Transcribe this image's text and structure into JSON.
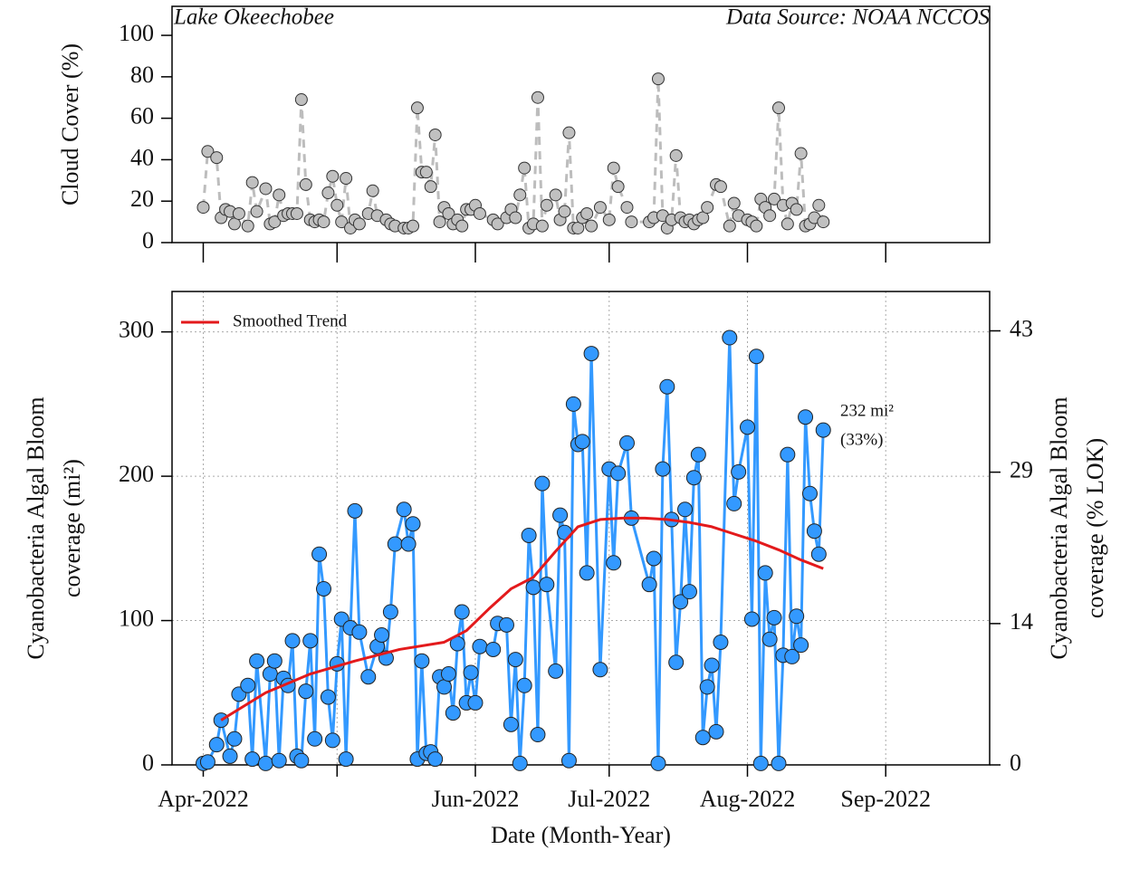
{
  "chart_data": [
    {
      "type": "scatter",
      "annotations": [
        "Lake Okeechobee",
        "Data Source: NOAA NCCOS"
      ],
      "ylabel": "Cloud Cover (%)",
      "color": "#c0c0c0",
      "line_color": "#bdbdbd",
      "x": [
        91,
        92,
        94,
        95,
        96,
        97,
        98,
        99,
        101,
        102,
        103,
        105,
        106,
        107,
        108,
        109,
        110,
        111,
        112,
        113,
        114,
        115,
        116,
        117,
        118,
        119,
        120,
        121,
        122,
        123,
        124,
        125,
        126,
        128,
        129,
        130,
        132,
        133,
        134,
        136,
        137,
        138,
        139,
        140,
        141,
        142,
        143,
        144,
        145,
        146,
        147,
        148,
        149,
        150,
        151,
        152,
        153,
        156,
        157,
        159,
        160,
        161,
        162,
        163,
        164,
        165,
        166,
        167,
        168,
        170,
        171,
        172,
        173,
        174,
        175,
        176,
        177,
        178,
        180,
        182,
        183,
        184,
        186,
        187,
        191,
        192,
        193,
        194,
        195,
        196,
        197,
        198,
        199,
        200,
        201,
        202,
        203,
        204,
        206,
        207,
        209,
        210,
        211,
        213,
        214,
        215,
        216,
        217,
        218,
        219,
        220,
        221,
        222,
        223,
        224,
        225,
        226,
        227,
        228,
        229,
        230
      ],
      "values": [
        17,
        44,
        41,
        12,
        16,
        15,
        9,
        14,
        8,
        29,
        15,
        26,
        9,
        10,
        23,
        13,
        14,
        14,
        14,
        69,
        28,
        11,
        10,
        11,
        10,
        24,
        32,
        18,
        10,
        31,
        7,
        11,
        9,
        14,
        25,
        13,
        11,
        9,
        8,
        7,
        7,
        8,
        65,
        34,
        34,
        27,
        52,
        10,
        17,
        14,
        9,
        11,
        8,
        16,
        16,
        18,
        14,
        11,
        9,
        12,
        16,
        12,
        23,
        36,
        7,
        9,
        70,
        8,
        18,
        23,
        11,
        15,
        53,
        7,
        7,
        12,
        14,
        8,
        17,
        11,
        36,
        27,
        17,
        10,
        10,
        12,
        79,
        13,
        7,
        11,
        42,
        12,
        10,
        11,
        9,
        11,
        12,
        17,
        28,
        27,
        8,
        19,
        13,
        11,
        10,
        8,
        21,
        17,
        13,
        21,
        65,
        18,
        9,
        19,
        16,
        43,
        8,
        9,
        12,
        18,
        10
      ],
      "xlim": [
        84,
        267.3
      ],
      "xticks": [
        {
          "value": 91,
          "label": null
        },
        {
          "value": 121,
          "label": null
        },
        {
          "value": 152,
          "label": null
        },
        {
          "value": 182,
          "label": null
        },
        {
          "value": 213,
          "label": null
        },
        {
          "value": 244,
          "label": null
        }
      ],
      "ylim": [
        0,
        114
      ],
      "yticks": [
        0,
        20,
        40,
        60,
        80,
        100
      ]
    },
    {
      "type": "line",
      "ylabel": [
        "Cyanobacteria Algal Bloom",
        "coverage (mi²)"
      ],
      "y2label": [
        "Cyanobacteria Algal Bloom",
        "coverage (% LOK)"
      ],
      "xlabel": "Date (Month-Year)",
      "legend": "upper left",
      "grid": true,
      "annotations": [
        "232 mi²",
        "(33%)"
      ],
      "series": [
        {
          "color": "#3399ff",
          "x": [
            91,
            92,
            94,
            95,
            97,
            98,
            99,
            101,
            102,
            103,
            105,
            106,
            107,
            108,
            109,
            110,
            111,
            112,
            113,
            114,
            115,
            116,
            117,
            118,
            119,
            120,
            121,
            122,
            123,
            124,
            125,
            126,
            128,
            130,
            131,
            132,
            133,
            134,
            136,
            137,
            138,
            139,
            140,
            141,
            142,
            143,
            144,
            145,
            146,
            147,
            148,
            149,
            150,
            151,
            152,
            153,
            156,
            157,
            159,
            160,
            161,
            162,
            163,
            164,
            165,
            166,
            167,
            168,
            170,
            171,
            172,
            173,
            174,
            175,
            176,
            177,
            178,
            180,
            182,
            183,
            184,
            186,
            187,
            191,
            192,
            193,
            194,
            195,
            196,
            197,
            198,
            199,
            200,
            201,
            202,
            203,
            204,
            205,
            206,
            207,
            209,
            210,
            211,
            213,
            214,
            215,
            216,
            217,
            218,
            219,
            220,
            221,
            222,
            223,
            224,
            225,
            226,
            227,
            228,
            229,
            230
          ],
          "values": [
            1,
            2,
            14,
            31,
            6,
            18,
            49,
            55,
            4,
            72,
            1,
            63,
            72,
            3,
            60,
            55,
            86,
            6,
            3,
            51,
            86,
            18,
            146,
            122,
            47,
            17,
            70,
            101,
            4,
            95,
            176,
            92,
            61,
            82,
            90,
            74,
            106,
            153,
            177,
            153,
            167,
            4,
            72,
            8,
            9,
            4,
            61,
            54,
            63,
            36,
            84,
            106,
            43,
            64,
            43,
            82,
            80,
            98,
            97,
            28,
            73,
            1,
            55,
            159,
            123,
            21,
            195,
            125,
            65,
            173,
            161,
            3,
            250,
            222,
            224,
            133,
            285,
            66,
            205,
            140,
            202,
            223,
            171,
            125,
            143,
            1,
            205,
            262,
            170,
            71,
            113,
            177,
            120,
            199,
            215,
            19,
            54,
            69,
            23,
            85,
            296,
            181,
            203,
            234,
            101,
            283,
            1,
            133,
            87,
            102,
            1,
            76,
            215,
            75,
            103,
            83,
            241,
            188,
            162,
            146,
            232
          ]
        },
        {
          "name": "Smoothed Trend",
          "color": "#e31a1c",
          "x": [
            95,
            105,
            115,
            125,
            135,
            145,
            150,
            155,
            160,
            165,
            170,
            175,
            180,
            185,
            190,
            195,
            200,
            205,
            210,
            215,
            220,
            225,
            230
          ],
          "values": [
            31,
            50,
            63,
            72,
            80,
            85,
            93,
            108,
            122,
            130,
            148,
            165,
            170,
            171,
            171,
            170,
            168,
            165,
            160,
            155,
            149,
            142,
            136
          ]
        }
      ],
      "xlim": [
        84,
        267.3
      ],
      "xticks": [
        {
          "value": 91,
          "label": "Apr-2022"
        },
        {
          "value": 121,
          "label": null
        },
        {
          "value": 152,
          "label": "Jun-2022"
        },
        {
          "value": 182,
          "label": "Jul-2022"
        },
        {
          "value": 213,
          "label": "Aug-2022"
        },
        {
          "value": 244,
          "label": "Sep-2022"
        }
      ],
      "ylim": [
        0,
        328
      ],
      "yticks": [
        0,
        100,
        200,
        300
      ],
      "y2lim": [
        0,
        46.9
      ],
      "y2ticks": [
        0,
        14,
        29,
        43
      ]
    }
  ]
}
